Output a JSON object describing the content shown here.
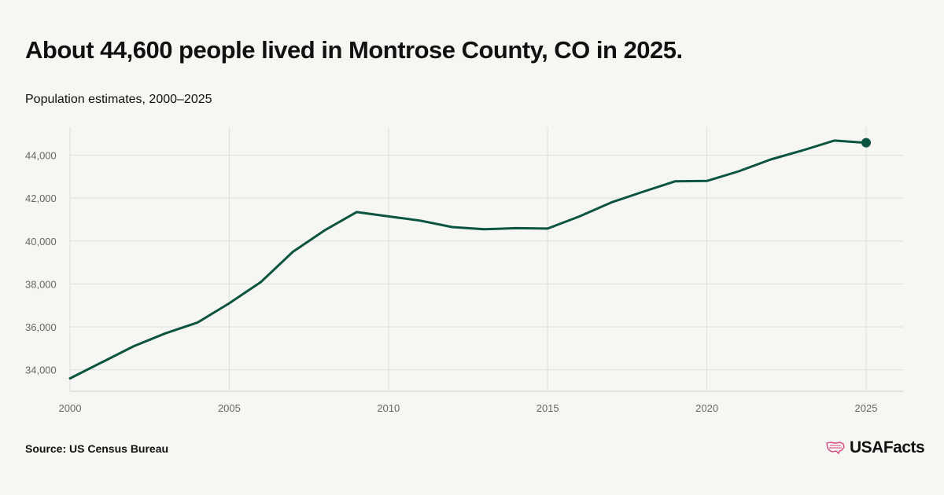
{
  "header": {
    "title": "About 44,600 people lived in Montrose County, CO in 2025.",
    "subtitle": "Population estimates, 2000–2025"
  },
  "footer": {
    "source": "Source: US Census Bureau",
    "brand": "USAFacts",
    "brand_icon": "us-map-icon"
  },
  "colors": {
    "line": "#0a5440",
    "grid": "#dedede",
    "axis_text": "#666666",
    "brand_icon": "#d8447e"
  },
  "chart_data": {
    "type": "line",
    "title": "About 44,600 people lived in Montrose County, CO in 2025.",
    "subtitle": "Population estimates, 2000–2025",
    "xlabel": "",
    "ylabel": "",
    "x": [
      2000,
      2001,
      2002,
      2003,
      2004,
      2005,
      2006,
      2007,
      2008,
      2009,
      2010,
      2011,
      2012,
      2013,
      2014,
      2015,
      2016,
      2017,
      2018,
      2019,
      2020,
      2021,
      2022,
      2023,
      2024,
      2025
    ],
    "series": [
      {
        "values": [
          33600,
          34350,
          35100,
          35700,
          36200,
          37100,
          38100,
          39500,
          40500,
          41350,
          41150,
          40950,
          40650,
          40550,
          40600,
          40580,
          41150,
          41800,
          42300,
          42780,
          42800,
          43250,
          43800,
          44220,
          44680,
          44580
        ]
      }
    ],
    "xlim": [
      2000,
      2025
    ],
    "ylim": [
      33000,
      45300
    ],
    "x_ticks": [
      "2000",
      "2005",
      "2010",
      "2015",
      "2020",
      "2025"
    ],
    "y_ticks": [
      "34,000",
      "36,000",
      "38,000",
      "40,000",
      "42,000",
      "44,000"
    ],
    "grid": true,
    "highlight_last_point": true
  }
}
